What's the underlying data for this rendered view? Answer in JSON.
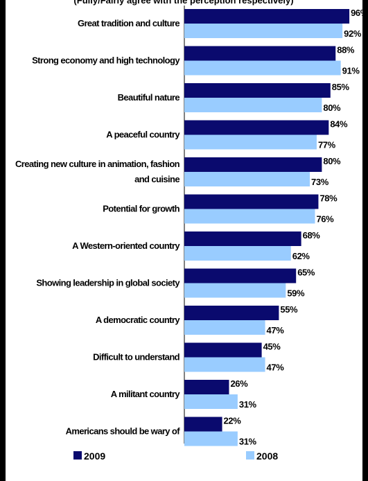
{
  "header_fragment": "(Fully/Fairly agree with the perception respectively)",
  "colors": {
    "series_2009": "#0a0a6e",
    "series_2008": "#99ccff",
    "frame": "#000000"
  },
  "chart_data": {
    "type": "bar",
    "orientation": "horizontal",
    "categories": [
      [
        "Great tradition and culture"
      ],
      [
        "Strong economy and high technology"
      ],
      [
        "Beautiful nature"
      ],
      [
        "A peaceful country"
      ],
      [
        "Creating new culture in animation, fashion",
        "and cuisine"
      ],
      [
        "Potential for growth"
      ],
      [
        "A Western-oriented country"
      ],
      [
        "Showing leadership in global society"
      ],
      [
        "A democratic country"
      ],
      [
        "Difficult to understand"
      ],
      [
        "A militant country"
      ],
      [
        "Americans should be wary of"
      ]
    ],
    "series": [
      {
        "name": "2009",
        "values": [
          96,
          88,
          85,
          84,
          80,
          78,
          68,
          65,
          55,
          45,
          26,
          22
        ]
      },
      {
        "name": "2008",
        "values": [
          92,
          91,
          80,
          77,
          73,
          76,
          62,
          59,
          47,
          47,
          31,
          31
        ]
      }
    ],
    "value_format": "{v}%",
    "xlim": [
      0,
      100
    ],
    "legend": "bottom"
  }
}
